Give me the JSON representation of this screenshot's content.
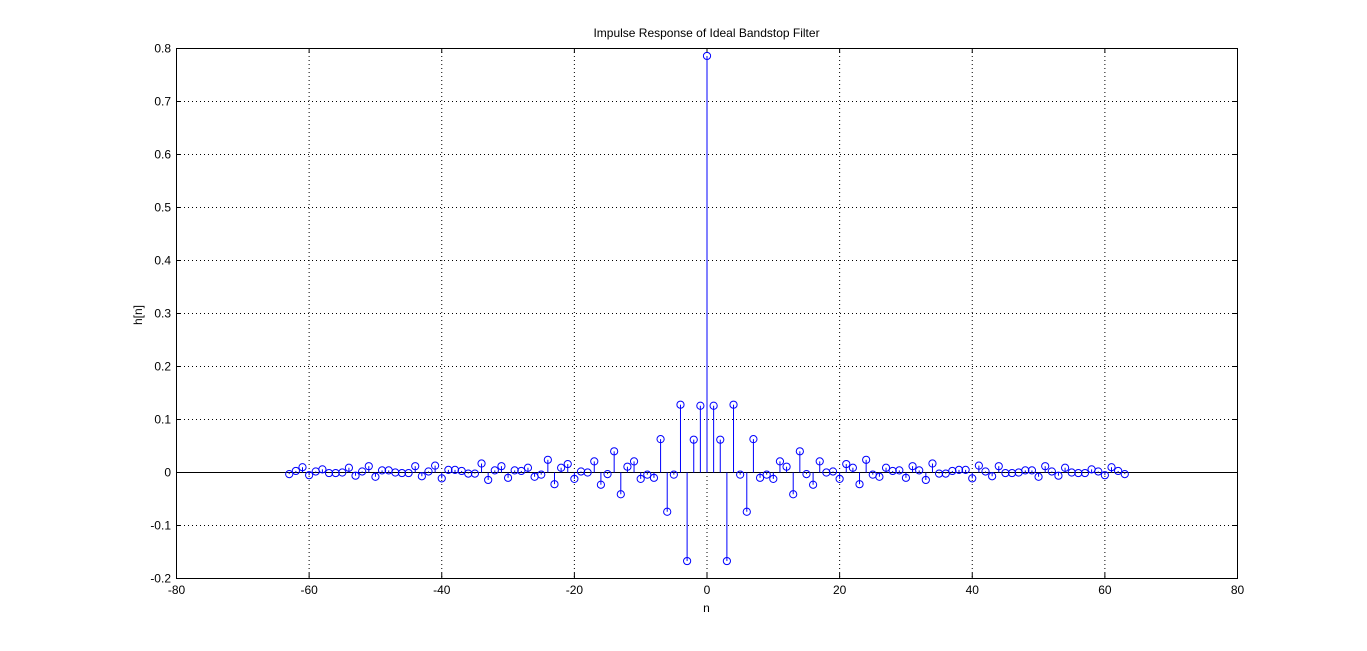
{
  "chart_data": {
    "type": "stem",
    "title": "Impulse Response of Ideal Bandstop Filter",
    "xlabel": "n",
    "ylabel": "h[n]",
    "xlim": [
      -80,
      80
    ],
    "ylim": [
      -0.2,
      0.8
    ],
    "xticks": [
      -80,
      -60,
      -40,
      -20,
      0,
      20,
      40,
      60,
      80
    ],
    "yticks": [
      -0.2,
      -0.1,
      0,
      0.1,
      0.2,
      0.3,
      0.4,
      0.5,
      0.6,
      0.7,
      0.8
    ],
    "xtick_labels": [
      "-80",
      "-60",
      "-40",
      "-20",
      "0",
      "20",
      "40",
      "60",
      "80"
    ],
    "ytick_labels": [
      "-0.2",
      "-0.1",
      "0",
      "0.1",
      "0.2",
      "0.3",
      "0.4",
      "0.5",
      "0.6",
      "0.7",
      "0.8"
    ],
    "grid": true,
    "series": [
      {
        "color": "#0000ff",
        "marker": "circle",
        "x": [
          -63,
          -62,
          -61,
          -60,
          -59,
          -58,
          -57,
          -56,
          -55,
          -54,
          -53,
          -52,
          -51,
          -50,
          -49,
          -48,
          -47,
          -46,
          -45,
          -44,
          -43,
          -42,
          -41,
          -40,
          -39,
          -38,
          -37,
          -36,
          -35,
          -34,
          -33,
          -32,
          -31,
          -30,
          -29,
          -28,
          -27,
          -26,
          -25,
          -24,
          -23,
          -22,
          -21,
          -20,
          -19,
          -18,
          -17,
          -16,
          -15,
          -14,
          -13,
          -12,
          -11,
          -10,
          -9,
          -8,
          -7,
          -6,
          -5,
          -4,
          -3,
          -2,
          -1,
          0,
          1,
          2,
          3,
          4,
          5,
          6,
          7,
          8,
          9,
          10,
          11,
          12,
          13,
          14,
          15,
          16,
          17,
          18,
          19,
          20,
          21,
          22,
          23,
          24,
          25,
          26,
          27,
          28,
          29,
          30,
          31,
          32,
          33,
          34,
          35,
          36,
          37,
          38,
          39,
          40,
          41,
          42,
          43,
          44,
          45,
          46,
          47,
          48,
          49,
          50,
          51,
          52,
          53,
          54,
          55,
          56,
          57,
          58,
          59,
          60,
          61,
          62,
          63
        ],
        "y": [
          -0.004,
          0.002,
          0.009,
          -0.006,
          0.001,
          0.005,
          -0.002,
          -0.002,
          -0.001,
          0.008,
          -0.007,
          0.001,
          0.011,
          -0.009,
          0.003,
          0.003,
          -0.001,
          -0.002,
          -0.002,
          0.011,
          -0.008,
          0.001,
          0.012,
          -0.012,
          0.004,
          0.004,
          0.002,
          -0.003,
          -0.003,
          0.016,
          -0.015,
          0.003,
          0.011,
          -0.011,
          0.003,
          0.002,
          0.008,
          -0.009,
          -0.005,
          0.023,
          -0.023,
          0.008,
          0.015,
          -0.013,
          0.001,
          -0.001,
          0.02,
          -0.024,
          -0.004,
          0.039,
          -0.042,
          0.01,
          0.02,
          -0.013,
          -0.005,
          -0.011,
          0.062,
          -0.075,
          -0.005,
          0.127,
          -0.168,
          0.061,
          0.125,
          0.785,
          0.125,
          0.061,
          -0.168,
          0.127,
          -0.005,
          -0.075,
          0.062,
          -0.011,
          -0.005,
          -0.013,
          0.02,
          0.01,
          -0.042,
          0.039,
          -0.004,
          -0.024,
          0.02,
          -0.001,
          0.001,
          -0.013,
          0.015,
          0.008,
          -0.023,
          0.023,
          -0.005,
          -0.009,
          0.008,
          0.002,
          0.003,
          -0.011,
          0.011,
          0.003,
          -0.015,
          0.016,
          -0.003,
          -0.003,
          0.002,
          0.004,
          0.004,
          -0.012,
          0.012,
          0.001,
          -0.008,
          0.011,
          -0.002,
          -0.002,
          -0.001,
          0.003,
          0.003,
          -0.009,
          0.011,
          0.001,
          -0.007,
          0.008,
          -0.001,
          -0.002,
          -0.002,
          0.005,
          0.001,
          -0.006,
          0.009,
          0.002,
          -0.004
        ]
      }
    ]
  }
}
